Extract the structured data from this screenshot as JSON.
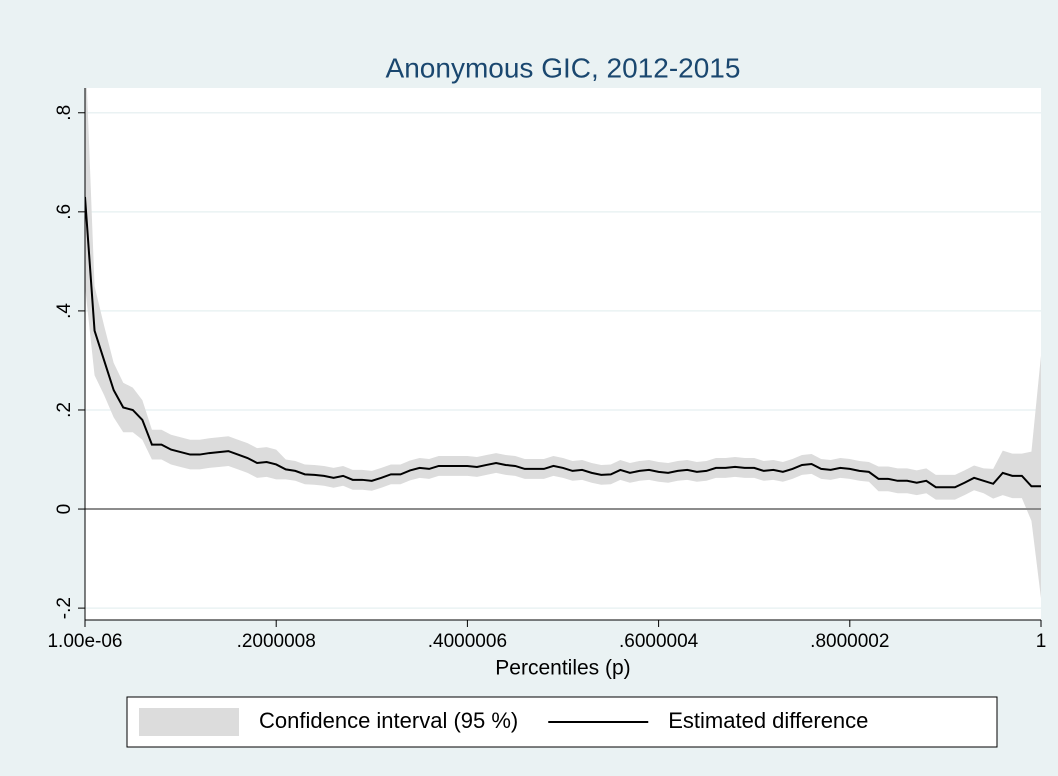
{
  "chart_data": {
    "type": "line",
    "title": "Anonymous GIC, 2012-2015",
    "x_label": "Percentiles (p)",
    "xlim": [
      1e-06,
      1
    ],
    "xticks": [
      {
        "value": 1e-06,
        "label": "1.00e-06"
      },
      {
        "value": 0.2000008,
        "label": ".2000008"
      },
      {
        "value": 0.4000006,
        "label": ".4000006"
      },
      {
        "value": 0.6000004,
        "label": ".6000004"
      },
      {
        "value": 0.8000002,
        "label": ".8000002"
      },
      1
    ],
    "ylim": [
      -0.224,
      0.85
    ],
    "yticks": [
      {
        "value": -0.2,
        "label": "-.2"
      },
      0,
      {
        "value": 0.2,
        "label": ".2"
      },
      {
        "value": 0.4,
        "label": ".4"
      },
      {
        "value": 0.6,
        "label": ".6"
      },
      {
        "value": 0.8,
        "label": ".8"
      }
    ],
    "grid": true,
    "reference_line": 0,
    "legend_position": "bottom",
    "x": [
      1e-06,
      0.01,
      0.02,
      0.03,
      0.04,
      0.05,
      0.06,
      0.07,
      0.08,
      0.09,
      0.1,
      0.11,
      0.12,
      0.13,
      0.14,
      0.15,
      0.16,
      0.17,
      0.18,
      0.19,
      0.2,
      0.21,
      0.22,
      0.23,
      0.24,
      0.25,
      0.26,
      0.27,
      0.28,
      0.29,
      0.3,
      0.31,
      0.32,
      0.33,
      0.34,
      0.35,
      0.36,
      0.37,
      0.38,
      0.39,
      0.4,
      0.41,
      0.42,
      0.43,
      0.44,
      0.45,
      0.46,
      0.47,
      0.48,
      0.49,
      0.5,
      0.51,
      0.52,
      0.53,
      0.54,
      0.55,
      0.56,
      0.57,
      0.58,
      0.59,
      0.6,
      0.61,
      0.62,
      0.63,
      0.64,
      0.65,
      0.66,
      0.67,
      0.68,
      0.69,
      0.7,
      0.71,
      0.72,
      0.73,
      0.74,
      0.75,
      0.76,
      0.77,
      0.78,
      0.79,
      0.8,
      0.81,
      0.82,
      0.83,
      0.84,
      0.85,
      0.86,
      0.87,
      0.88,
      0.89,
      0.9,
      0.91,
      0.92,
      0.93,
      0.94,
      0.95,
      0.96,
      0.97,
      0.98,
      0.99,
      1
    ],
    "series": [
      {
        "name": "Confidence interval (95 %)",
        "color": "#dcdcdc",
        "upper": [
          0.95,
          0.45,
          0.37,
          0.295,
          0.255,
          0.245,
          0.22,
          0.16,
          0.16,
          0.15,
          0.145,
          0.14,
          0.14,
          0.143,
          0.145,
          0.147,
          0.14,
          0.133,
          0.123,
          0.125,
          0.12,
          0.1,
          0.097,
          0.09,
          0.089,
          0.087,
          0.083,
          0.087,
          0.079,
          0.079,
          0.077,
          0.083,
          0.09,
          0.09,
          0.098,
          0.103,
          0.101,
          0.107,
          0.107,
          0.107,
          0.107,
          0.105,
          0.109,
          0.113,
          0.109,
          0.107,
          0.101,
          0.101,
          0.101,
          0.107,
          0.103,
          0.097,
          0.099,
          0.093,
          0.089,
          0.09,
          0.099,
          0.093,
          0.097,
          0.099,
          0.095,
          0.093,
          0.097,
          0.099,
          0.095,
          0.097,
          0.103,
          0.103,
          0.105,
          0.103,
          0.103,
          0.097,
          0.099,
          0.095,
          0.101,
          0.109,
          0.111,
          0.101,
          0.099,
          0.103,
          0.101,
          0.097,
          0.095,
          0.086,
          0.086,
          0.082,
          0.082,
          0.078,
          0.082,
          0.069,
          0.069,
          0.069,
          0.078,
          0.088,
          0.082,
          0.081,
          0.118,
          0.112,
          0.112,
          0.116,
          0.31
        ],
        "lower": [
          0.45,
          0.27,
          0.23,
          0.185,
          0.155,
          0.155,
          0.14,
          0.1,
          0.1,
          0.09,
          0.085,
          0.08,
          0.08,
          0.083,
          0.085,
          0.087,
          0.08,
          0.073,
          0.063,
          0.065,
          0.06,
          0.06,
          0.057,
          0.05,
          0.049,
          0.047,
          0.043,
          0.047,
          0.039,
          0.039,
          0.037,
          0.043,
          0.05,
          0.05,
          0.058,
          0.063,
          0.061,
          0.067,
          0.067,
          0.067,
          0.067,
          0.065,
          0.069,
          0.073,
          0.069,
          0.067,
          0.061,
          0.061,
          0.061,
          0.067,
          0.063,
          0.057,
          0.059,
          0.053,
          0.049,
          0.05,
          0.059,
          0.053,
          0.057,
          0.059,
          0.055,
          0.053,
          0.057,
          0.059,
          0.055,
          0.057,
          0.063,
          0.063,
          0.065,
          0.063,
          0.063,
          0.057,
          0.059,
          0.055,
          0.061,
          0.069,
          0.071,
          0.061,
          0.059,
          0.063,
          0.061,
          0.057,
          0.055,
          0.036,
          0.036,
          0.032,
          0.032,
          0.028,
          0.032,
          0.019,
          0.019,
          0.019,
          0.028,
          0.038,
          0.032,
          0.021,
          0.028,
          0.022,
          0.022,
          -0.024,
          -0.18
        ]
      },
      {
        "name": "Estimated difference",
        "color": "#000000",
        "values": [
          0.63,
          0.36,
          0.3,
          0.24,
          0.205,
          0.2,
          0.18,
          0.13,
          0.13,
          0.12,
          0.115,
          0.11,
          0.11,
          0.113,
          0.115,
          0.117,
          0.11,
          0.103,
          0.093,
          0.095,
          0.09,
          0.08,
          0.077,
          0.07,
          0.069,
          0.067,
          0.063,
          0.067,
          0.059,
          0.059,
          0.057,
          0.063,
          0.07,
          0.07,
          0.078,
          0.083,
          0.081,
          0.087,
          0.087,
          0.087,
          0.087,
          0.085,
          0.089,
          0.093,
          0.089,
          0.087,
          0.081,
          0.081,
          0.081,
          0.087,
          0.083,
          0.077,
          0.079,
          0.073,
          0.069,
          0.07,
          0.079,
          0.073,
          0.077,
          0.079,
          0.075,
          0.073,
          0.077,
          0.079,
          0.075,
          0.077,
          0.083,
          0.083,
          0.085,
          0.083,
          0.083,
          0.077,
          0.079,
          0.075,
          0.081,
          0.089,
          0.091,
          0.081,
          0.079,
          0.083,
          0.081,
          0.077,
          0.075,
          0.061,
          0.061,
          0.057,
          0.057,
          0.053,
          0.057,
          0.044,
          0.044,
          0.044,
          0.053,
          0.063,
          0.057,
          0.051,
          0.073,
          0.067,
          0.067,
          0.046,
          0.046
        ]
      }
    ]
  }
}
